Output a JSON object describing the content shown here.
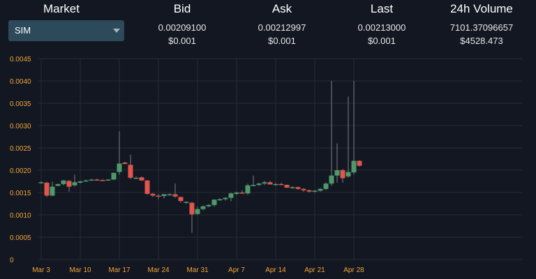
{
  "header": {
    "columns": [
      {
        "title": "Market",
        "v1": "",
        "v2": ""
      },
      {
        "title": "Bid",
        "v1": "0.00209100",
        "v2": "$0.001"
      },
      {
        "title": "Ask",
        "v1": "0.00212997",
        "v2": "$0.001"
      },
      {
        "title": "Last",
        "v1": "0.00213000",
        "v2": "$0.001"
      },
      {
        "title": "24h Volume",
        "v1": "7101.37096657",
        "v2": "$4528.473"
      }
    ],
    "market_selected": "SIM"
  },
  "colors": {
    "background": "#131722",
    "up": "#4c9a6a",
    "down": "#e0554c",
    "axis_text": "#f2a536",
    "grid": "#262b36",
    "select_bg": "#2c4a5a"
  },
  "chart_data": {
    "type": "candlestick",
    "grid": true,
    "ylim": [
      0,
      0.0045
    ],
    "yticks": [
      "0",
      "0.0005",
      "0.0010",
      "0.0015",
      "0.0020",
      "0.0025",
      "0.0030",
      "0.0035",
      "0.0040",
      "0.0045"
    ],
    "xticks": [
      "Mar 3",
      "Mar 10",
      "Mar 17",
      "Mar 24",
      "Mar 31",
      "Apr 7",
      "Apr 14",
      "Apr 21",
      "Apr 28"
    ],
    "candles": [
      {
        "date": "Mar 3",
        "o": 0.00172,
        "h": 0.00175,
        "l": 0.0017,
        "c": 0.00173
      },
      {
        "date": "Mar 4",
        "o": 0.00172,
        "h": 0.00174,
        "l": 0.0014,
        "c": 0.00143
      },
      {
        "date": "Mar 5",
        "o": 0.00143,
        "h": 0.00174,
        "l": 0.00142,
        "c": 0.00163
      },
      {
        "date": "Mar 6",
        "o": 0.00165,
        "h": 0.0017,
        "l": 0.00164,
        "c": 0.00169
      },
      {
        "date": "Mar 7",
        "o": 0.00169,
        "h": 0.00178,
        "l": 0.00166,
        "c": 0.00177
      },
      {
        "date": "Mar 8",
        "o": 0.00176,
        "h": 0.00178,
        "l": 0.00152,
        "c": 0.00163
      },
      {
        "date": "Mar 9",
        "o": 0.00166,
        "h": 0.0019,
        "l": 0.00163,
        "c": 0.00173
      },
      {
        "date": "Mar 10",
        "o": 0.00172,
        "h": 0.00176,
        "l": 0.0017,
        "c": 0.00175
      },
      {
        "date": "Mar 11",
        "o": 0.00175,
        "h": 0.00179,
        "l": 0.00174,
        "c": 0.00177
      },
      {
        "date": "Mar 12",
        "o": 0.00177,
        "h": 0.0018,
        "l": 0.00176,
        "c": 0.00179
      },
      {
        "date": "Mar 13",
        "o": 0.00179,
        "h": 0.00181,
        "l": 0.00177,
        "c": 0.00178
      },
      {
        "date": "Mar 14",
        "o": 0.00178,
        "h": 0.0018,
        "l": 0.00177,
        "c": 0.00177
      },
      {
        "date": "Mar 15",
        "o": 0.00177,
        "h": 0.0018,
        "l": 0.00177,
        "c": 0.00179
      },
      {
        "date": "Mar 16",
        "o": 0.00179,
        "h": 0.00195,
        "l": 0.00178,
        "c": 0.00194
      },
      {
        "date": "Mar 17",
        "o": 0.00196,
        "h": 0.00287,
        "l": 0.0019,
        "c": 0.00215
      },
      {
        "date": "Mar 18",
        "o": 0.00217,
        "h": 0.00219,
        "l": 0.00213,
        "c": 0.00214
      },
      {
        "date": "Mar 19",
        "o": 0.00212,
        "h": 0.00235,
        "l": 0.0018,
        "c": 0.00183
      },
      {
        "date": "Mar 20",
        "o": 0.00183,
        "h": 0.00186,
        "l": 0.00181,
        "c": 0.00183
      },
      {
        "date": "Mar 21",
        "o": 0.00184,
        "h": 0.00186,
        "l": 0.00176,
        "c": 0.00177
      },
      {
        "date": "Mar 22",
        "o": 0.00177,
        "h": 0.00178,
        "l": 0.00145,
        "c": 0.00147
      },
      {
        "date": "Mar 23",
        "o": 0.00147,
        "h": 0.00149,
        "l": 0.0014,
        "c": 0.00143
      },
      {
        "date": "Mar 24",
        "o": 0.00143,
        "h": 0.00146,
        "l": 0.00135,
        "c": 0.00142
      },
      {
        "date": "Mar 25",
        "o": 0.00142,
        "h": 0.00147,
        "l": 0.00137,
        "c": 0.00146
      },
      {
        "date": "Mar 26",
        "o": 0.00144,
        "h": 0.00148,
        "l": 0.00143,
        "c": 0.00146
      },
      {
        "date": "Mar 27",
        "o": 0.00146,
        "h": 0.0017,
        "l": 0.00138,
        "c": 0.00141
      },
      {
        "date": "Mar 28",
        "o": 0.0014,
        "h": 0.0014,
        "l": 0.00127,
        "c": 0.00131
      },
      {
        "date": "Mar 29",
        "o": 0.00128,
        "h": 0.0013,
        "l": 0.00125,
        "c": 0.00129
      },
      {
        "date": "Mar 30",
        "o": 0.00127,
        "h": 0.00129,
        "l": 0.0006,
        "c": 0.00101
      },
      {
        "date": "Mar 31",
        "o": 0.00102,
        "h": 0.00118,
        "l": 0.001,
        "c": 0.00113
      },
      {
        "date": "Apr 1",
        "o": 0.00113,
        "h": 0.00121,
        "l": 0.0011,
        "c": 0.00119
      },
      {
        "date": "Apr 2",
        "o": 0.00119,
        "h": 0.00124,
        "l": 0.00117,
        "c": 0.00122
      },
      {
        "date": "Apr 3",
        "o": 0.00122,
        "h": 0.00135,
        "l": 0.00118,
        "c": 0.00134
      },
      {
        "date": "Apr 4",
        "o": 0.00134,
        "h": 0.00137,
        "l": 0.00131,
        "c": 0.00135
      },
      {
        "date": "Apr 5",
        "o": 0.00135,
        "h": 0.0014,
        "l": 0.00132,
        "c": 0.00138
      },
      {
        "date": "Apr 6",
        "o": 0.00138,
        "h": 0.0015,
        "l": 0.0013,
        "c": 0.00148
      },
      {
        "date": "Apr 7",
        "o": 0.00147,
        "h": 0.00152,
        "l": 0.00144,
        "c": 0.0015
      },
      {
        "date": "Apr 8",
        "o": 0.0015,
        "h": 0.00155,
        "l": 0.00147,
        "c": 0.00148
      },
      {
        "date": "Apr 9",
        "o": 0.00148,
        "h": 0.0017,
        "l": 0.00145,
        "c": 0.00166
      },
      {
        "date": "Apr 10",
        "o": 0.00165,
        "h": 0.00188,
        "l": 0.00163,
        "c": 0.00167
      },
      {
        "date": "Apr 11",
        "o": 0.00167,
        "h": 0.00172,
        "l": 0.00164,
        "c": 0.0017
      },
      {
        "date": "Apr 12",
        "o": 0.0017,
        "h": 0.00176,
        "l": 0.00167,
        "c": 0.00173
      },
      {
        "date": "Apr 13",
        "o": 0.00173,
        "h": 0.00176,
        "l": 0.0017,
        "c": 0.00168
      },
      {
        "date": "Apr 14",
        "o": 0.00168,
        "h": 0.00172,
        "l": 0.00165,
        "c": 0.00169
      },
      {
        "date": "Apr 15",
        "o": 0.00169,
        "h": 0.00172,
        "l": 0.00166,
        "c": 0.00167
      },
      {
        "date": "Apr 16",
        "o": 0.00167,
        "h": 0.00168,
        "l": 0.0016,
        "c": 0.00161
      },
      {
        "date": "Apr 17",
        "o": 0.00161,
        "h": 0.00164,
        "l": 0.00158,
        "c": 0.00162
      },
      {
        "date": "Apr 18",
        "o": 0.00162,
        "h": 0.00163,
        "l": 0.00156,
        "c": 0.00158
      },
      {
        "date": "Apr 19",
        "o": 0.00158,
        "h": 0.0016,
        "l": 0.00152,
        "c": 0.00155
      },
      {
        "date": "Apr 20",
        "o": 0.00155,
        "h": 0.00157,
        "l": 0.0015,
        "c": 0.00152
      },
      {
        "date": "Apr 21",
        "o": 0.00152,
        "h": 0.00156,
        "l": 0.0015,
        "c": 0.00154
      },
      {
        "date": "Apr 22",
        "o": 0.00154,
        "h": 0.0016,
        "l": 0.00152,
        "c": 0.00158
      },
      {
        "date": "Apr 23",
        "o": 0.00158,
        "h": 0.00173,
        "l": 0.00155,
        "c": 0.0017
      },
      {
        "date": "Apr 24",
        "o": 0.0017,
        "h": 0.004,
        "l": 0.00165,
        "c": 0.00188
      },
      {
        "date": "Apr 25",
        "o": 0.00188,
        "h": 0.0026,
        "l": 0.00172,
        "c": 0.002
      },
      {
        "date": "Apr 26",
        "o": 0.002,
        "h": 0.00203,
        "l": 0.00172,
        "c": 0.00182
      },
      {
        "date": "Apr 27",
        "o": 0.00186,
        "h": 0.00365,
        "l": 0.00183,
        "c": 0.00196
      },
      {
        "date": "Apr 28",
        "o": 0.00195,
        "h": 0.004,
        "l": 0.0019,
        "c": 0.00221
      },
      {
        "date": "Apr 29",
        "o": 0.00221,
        "h": 0.00222,
        "l": 0.00208,
        "c": 0.0021
      }
    ]
  }
}
